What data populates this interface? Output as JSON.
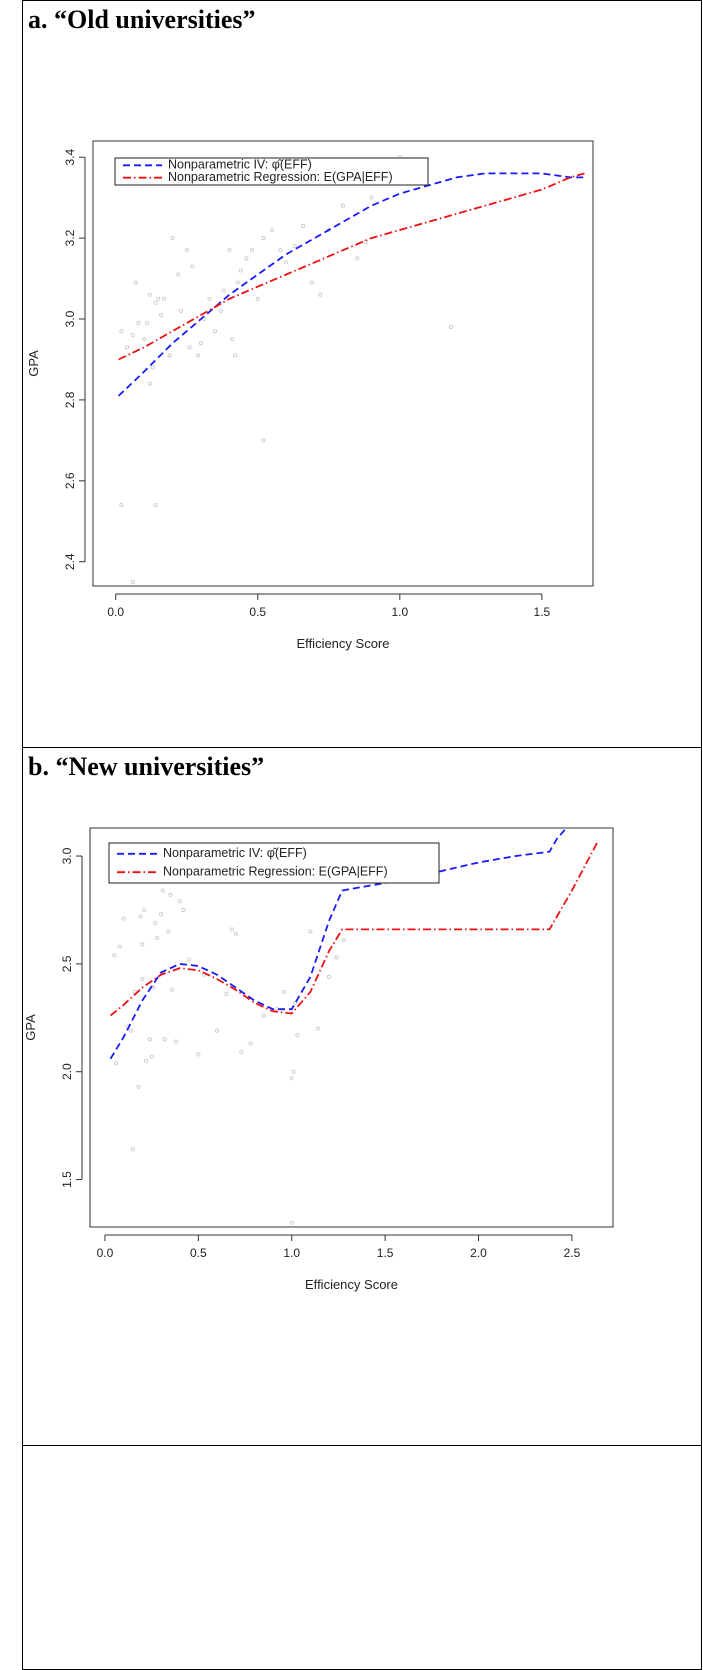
{
  "panels": [
    {
      "title": "a. “Old universities”",
      "chart_data": {
        "type": "line",
        "xlabel": "Efficiency Score",
        "ylabel": "GPA",
        "xlim": [
          -0.08,
          1.68
        ],
        "ylim": [
          2.34,
          3.44
        ],
        "xticks": [
          0.0,
          0.5,
          1.0,
          1.5
        ],
        "xtick_labels": [
          "0.0",
          "0.5",
          "1.0",
          "1.5"
        ],
        "yticks": [
          2.4,
          2.6,
          2.8,
          3.0,
          3.2,
          3.4
        ],
        "ytick_labels": [
          "2.4",
          "2.6",
          "2.8",
          "3.0",
          "3.2",
          "3.4"
        ],
        "grid": false,
        "legend_position": "top-left",
        "series": [
          {
            "name": "Nonparametric IV: φ̂(EFF)",
            "color": "#1a1aff",
            "dash": "dashed",
            "x": [
              0.01,
              0.1,
              0.2,
              0.3,
              0.4,
              0.5,
              0.6,
              0.7,
              0.8,
              0.9,
              1.0,
              1.1,
              1.2,
              1.3,
              1.4,
              1.5,
              1.6,
              1.65
            ],
            "y": [
              2.81,
              2.87,
              2.94,
              3.0,
              3.06,
              3.11,
              3.16,
              3.2,
              3.24,
              3.28,
              3.31,
              3.33,
              3.35,
              3.36,
              3.36,
              3.36,
              3.35,
              3.35
            ]
          },
          {
            "name": "Nonparametric Regression: E(GPA|EFF)",
            "color": "#ee1111",
            "dash": "dotdash",
            "x": [
              0.01,
              0.1,
              0.2,
              0.3,
              0.4,
              0.5,
              0.6,
              0.7,
              0.8,
              0.9,
              1.0,
              1.1,
              1.2,
              1.3,
              1.4,
              1.5,
              1.6,
              1.65
            ],
            "y": [
              2.9,
              2.93,
              2.97,
              3.01,
              3.05,
              3.08,
              3.11,
              3.14,
              3.17,
              3.2,
              3.22,
              3.24,
              3.26,
              3.28,
              3.3,
              3.32,
              3.35,
              3.36
            ]
          }
        ],
        "points": {
          "color": "#cccccc",
          "x": [
            0.02,
            0.04,
            0.06,
            0.07,
            0.1,
            0.12,
            0.14,
            0.15,
            0.13,
            0.12,
            0.11,
            0.17,
            0.19,
            0.2,
            0.22,
            0.25,
            0.27,
            0.23,
            0.29,
            0.31,
            0.33,
            0.35,
            0.38,
            0.4,
            0.42,
            0.43,
            0.44,
            0.46,
            0.48,
            0.5,
            0.52,
            0.55,
            0.58,
            0.6,
            0.63,
            0.66,
            0.69,
            0.72,
            0.75,
            0.8,
            0.85,
            0.88,
            0.9,
            1.0,
            1.18,
            0.52,
            0.02,
            0.14,
            0.06,
            0.08,
            0.3,
            0.37,
            0.41,
            0.16,
            0.26
          ],
          "y": [
            2.97,
            2.93,
            2.96,
            3.09,
            2.95,
            3.06,
            3.04,
            3.05,
            2.88,
            2.84,
            2.99,
            3.05,
            2.91,
            3.2,
            3.11,
            3.17,
            3.13,
            3.02,
            2.91,
            3.0,
            3.05,
            2.97,
            3.07,
            3.17,
            2.91,
            3.09,
            3.12,
            3.15,
            3.17,
            3.05,
            3.2,
            3.22,
            3.17,
            3.14,
            3.18,
            3.23,
            3.09,
            3.06,
            3.22,
            3.28,
            3.15,
            3.19,
            3.3,
            3.4,
            2.98,
            2.7,
            2.54,
            2.54,
            2.35,
            2.99,
            2.94,
            3.02,
            2.95,
            3.01,
            2.93
          ]
        }
      }
    },
    {
      "title": "b. “New universities”",
      "chart_data": {
        "type": "line",
        "xlabel": "Efficiency Score",
        "ylabel": "GPA",
        "xlim": [
          -0.08,
          2.72
        ],
        "ylim": [
          1.28,
          3.13
        ],
        "xticks": [
          0.0,
          0.5,
          1.0,
          1.5,
          2.0,
          2.5
        ],
        "xtick_labels": [
          "0.0",
          "0.5",
          "1.0",
          "1.5",
          "2.0",
          "2.5"
        ],
        "yticks": [
          1.5,
          2.0,
          2.5,
          3.0
        ],
        "ytick_labels": [
          "1.5",
          "2.0",
          "2.5",
          "3.0"
        ],
        "grid": false,
        "legend_position": "top-left",
        "series": [
          {
            "name": "Nonparametric IV: φ̂(EFF)",
            "color": "#1a1aff",
            "dash": "dashed",
            "x": [
              0.03,
              0.1,
              0.2,
              0.3,
              0.4,
              0.5,
              0.6,
              0.7,
              0.8,
              0.9,
              1.0,
              1.1,
              1.2,
              1.27,
              1.4,
              1.6,
              1.8,
              2.0,
              2.2,
              2.38,
              2.42,
              2.47
            ],
            "y": [
              2.06,
              2.16,
              2.33,
              2.46,
              2.5,
              2.49,
              2.45,
              2.39,
              2.33,
              2.29,
              2.29,
              2.44,
              2.7,
              2.84,
              2.86,
              2.89,
              2.93,
              2.97,
              3.0,
              3.02,
              3.08,
              3.13
            ]
          },
          {
            "name": "Nonparametric Regression: E(GPA|EFF)",
            "color": "#ee1111",
            "dash": "dotdash",
            "x": [
              0.03,
              0.1,
              0.2,
              0.3,
              0.4,
              0.5,
              0.6,
              0.7,
              0.8,
              0.9,
              1.0,
              1.1,
              1.2,
              1.27,
              1.4,
              1.6,
              1.8,
              2.0,
              2.2,
              2.38,
              2.5,
              2.64
            ],
            "y": [
              2.26,
              2.31,
              2.39,
              2.45,
              2.48,
              2.47,
              2.43,
              2.38,
              2.32,
              2.28,
              2.27,
              2.37,
              2.56,
              2.66,
              2.66,
              2.66,
              2.66,
              2.66,
              2.66,
              2.66,
              2.84,
              3.07
            ]
          }
        ],
        "points": {
          "color": "#cccccc",
          "x": [
            0.06,
            0.08,
            0.1,
            0.12,
            0.14,
            0.16,
            0.18,
            0.2,
            0.21,
            0.22,
            0.24,
            0.25,
            0.26,
            0.28,
            0.3,
            0.31,
            0.32,
            0.34,
            0.35,
            0.38,
            0.4,
            0.42,
            0.45,
            0.5,
            0.53,
            0.6,
            0.65,
            0.68,
            0.7,
            0.73,
            0.78,
            0.85,
            0.92,
            0.96,
            1.0,
            1.01,
            1.02,
            1.03,
            1.1,
            1.14,
            1.2,
            1.24,
            1.28,
            1.0,
            0.15,
            0.2,
            0.19,
            0.05,
            0.27,
            0.36
          ],
          "y": [
            2.04,
            2.58,
            2.71,
            2.21,
            2.19,
            2.37,
            1.93,
            2.59,
            2.75,
            2.05,
            2.15,
            2.07,
            2.39,
            2.62,
            2.73,
            2.84,
            2.15,
            2.65,
            2.82,
            2.14,
            2.79,
            2.75,
            2.52,
            2.08,
            2.45,
            2.19,
            2.36,
            2.66,
            2.64,
            2.09,
            2.13,
            2.26,
            2.29,
            2.37,
            1.97,
            2.0,
            2.32,
            2.17,
            2.65,
            2.2,
            2.44,
            2.53,
            2.61,
            1.3,
            1.64,
            2.43,
            2.72,
            2.54,
            2.69,
            2.38
          ]
        }
      }
    }
  ]
}
